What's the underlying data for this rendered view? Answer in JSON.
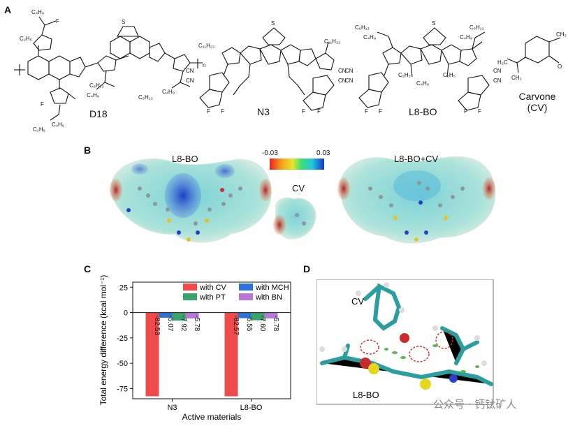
{
  "panels": {
    "a": "A",
    "b": "B",
    "c": "C",
    "d": "D"
  },
  "structures": {
    "d18": "D18",
    "n3": "N3",
    "l8bo": "L8-BO",
    "carvone_line1": "Carvone",
    "carvone_line2": "(CV)",
    "sub_c4h9": "C₄H₉",
    "sub_c2h5": "C₂H₅",
    "sub_c6h13": "C₆H₁₃",
    "sub_c11h23": "C₁₁H₂₃",
    "atom_f": "F",
    "atom_s": "S",
    "atom_n": "N",
    "atom_o": "O",
    "group_cn": "CN",
    "h2c": "H₂C",
    "ch3": "CH₃",
    "repeat_n": "n"
  },
  "esp": {
    "left_title": "L8-BO",
    "right_title": "L8-BO+CV",
    "middle_title": "CV",
    "scale_min": "-0.03",
    "scale_max": "0.03"
  },
  "chart_data": {
    "type": "bar",
    "ylabel": "Total energy difference (kcal mol⁻¹)",
    "xlabel": "Active materials",
    "categories": [
      "N3",
      "L8-BO"
    ],
    "ylim": [
      -85,
      30
    ],
    "yticks": [
      "25",
      "0",
      "-25",
      "-50",
      "-75"
    ],
    "series": [
      {
        "name": "with CV",
        "color": "#ef4b4b",
        "values": [
          -82.53,
          -82.57
        ],
        "labels": [
          "-82.53",
          "-82.57"
        ]
      },
      {
        "name": "with MCH",
        "color": "#2f72d6",
        "values": [
          -5.07,
          -5.55
        ],
        "labels": [
          "-5.07",
          "-5.55"
        ]
      },
      {
        "name": "with PT",
        "color": "#3aa36b",
        "values": [
          -7.92,
          -7.6
        ],
        "labels": [
          "-7.92",
          "-7.60"
        ]
      },
      {
        "name": "with BN",
        "color": "#b57ad6",
        "values": [
          -5.78,
          -5.78
        ],
        "labels": [
          "-5.78",
          "-5.78"
        ]
      }
    ],
    "legend_placement": "top-right",
    "grid": false
  },
  "panel_d": {
    "label_top": "CV",
    "label_bottom": "L8-BO"
  },
  "watermark": "公众号 · 钙钛矿人"
}
